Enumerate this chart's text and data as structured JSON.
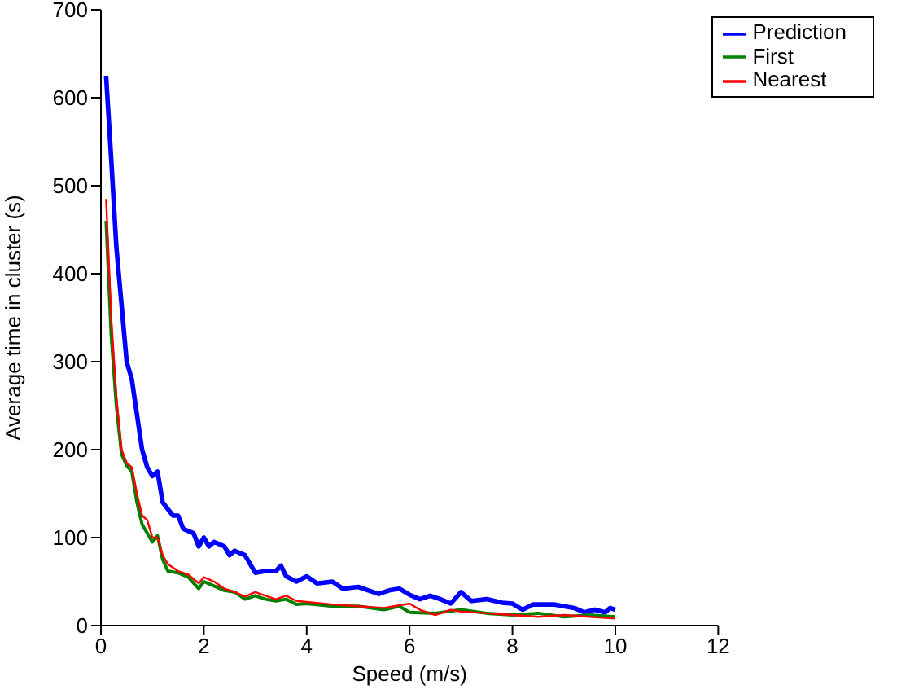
{
  "chart_data": {
    "type": "line",
    "xlabel": "Speed (m/s)",
    "ylabel": "Average time in cluster (s)",
    "xlim": [
      0,
      12
    ],
    "xticks": [
      0,
      2,
      4,
      6,
      8,
      10,
      12
    ],
    "ylim": [
      0,
      700
    ],
    "yticks": [
      0,
      100,
      200,
      300,
      400,
      500,
      600,
      700
    ],
    "grid": false,
    "legend": "top right",
    "marker": "none",
    "line_style": "solid",
    "series": [
      {
        "name": "Prediction",
        "color": "#0000ff",
        "x": [
          0.1,
          0.2,
          0.3,
          0.5,
          0.6,
          0.7,
          0.8,
          0.9,
          1.0,
          1.1,
          1.2,
          1.4,
          1.5,
          1.6,
          1.8,
          1.9,
          2.0,
          2.1,
          2.2,
          2.4,
          2.5,
          2.6,
          2.8,
          3.0,
          3.2,
          3.4,
          3.5,
          3.6,
          3.8,
          4.0,
          4.2,
          4.5,
          4.7,
          5.0,
          5.2,
          5.4,
          5.6,
          5.8,
          6.0,
          6.2,
          6.4,
          6.6,
          6.8,
          7.0,
          7.2,
          7.5,
          7.8,
          8.0,
          8.2,
          8.4,
          8.8,
          9.2,
          9.4,
          9.6,
          9.8,
          9.9,
          10.0
        ],
        "values": [
          625,
          530,
          430,
          300,
          280,
          240,
          200,
          180,
          170,
          175,
          140,
          125,
          125,
          110,
          105,
          90,
          100,
          90,
          95,
          90,
          80,
          85,
          80,
          60,
          62,
          62,
          68,
          56,
          50,
          56,
          48,
          50,
          42,
          44,
          40,
          36,
          40,
          42,
          35,
          30,
          34,
          30,
          25,
          38,
          28,
          30,
          26,
          25,
          18,
          24,
          24,
          20,
          15,
          18,
          15,
          20,
          18
        ]
      },
      {
        "name": "First",
        "color": "#008000",
        "x": [
          0.1,
          0.2,
          0.3,
          0.4,
          0.5,
          0.6,
          0.7,
          0.8,
          0.9,
          1.0,
          1.1,
          1.2,
          1.3,
          1.5,
          1.7,
          1.9,
          2.0,
          2.2,
          2.4,
          2.6,
          2.8,
          3.0,
          3.2,
          3.4,
          3.6,
          3.8,
          4.0,
          4.5,
          5.0,
          5.5,
          5.8,
          6.0,
          6.5,
          7.0,
          7.5,
          8.0,
          8.5,
          9.0,
          9.5,
          10.0
        ],
        "values": [
          460,
          330,
          250,
          195,
          182,
          175,
          140,
          115,
          105,
          95,
          102,
          75,
          62,
          60,
          55,
          42,
          50,
          45,
          40,
          38,
          30,
          34,
          30,
          28,
          30,
          24,
          25,
          22,
          22,
          18,
          22,
          15,
          14,
          18,
          14,
          12,
          14,
          10,
          12,
          10
        ]
      },
      {
        "name": "Nearest",
        "color": "#ff0000",
        "x": [
          0.1,
          0.2,
          0.3,
          0.4,
          0.5,
          0.6,
          0.7,
          0.8,
          0.9,
          1.0,
          1.1,
          1.2,
          1.3,
          1.5,
          1.7,
          1.9,
          2.0,
          2.2,
          2.4,
          2.6,
          2.8,
          3.0,
          3.2,
          3.4,
          3.6,
          3.8,
          4.0,
          4.5,
          5.0,
          5.5,
          6.0,
          6.2,
          6.5,
          6.8,
          7.0,
          7.5,
          8.0,
          8.5,
          9.0,
          9.5,
          10.0
        ],
        "values": [
          485,
          350,
          260,
          200,
          185,
          180,
          150,
          125,
          120,
          100,
          100,
          80,
          70,
          62,
          58,
          48,
          55,
          50,
          42,
          38,
          33,
          38,
          34,
          30,
          34,
          28,
          27,
          24,
          22,
          20,
          25,
          18,
          12,
          18,
          16,
          14,
          12,
          10,
          12,
          10,
          8
        ]
      }
    ]
  }
}
